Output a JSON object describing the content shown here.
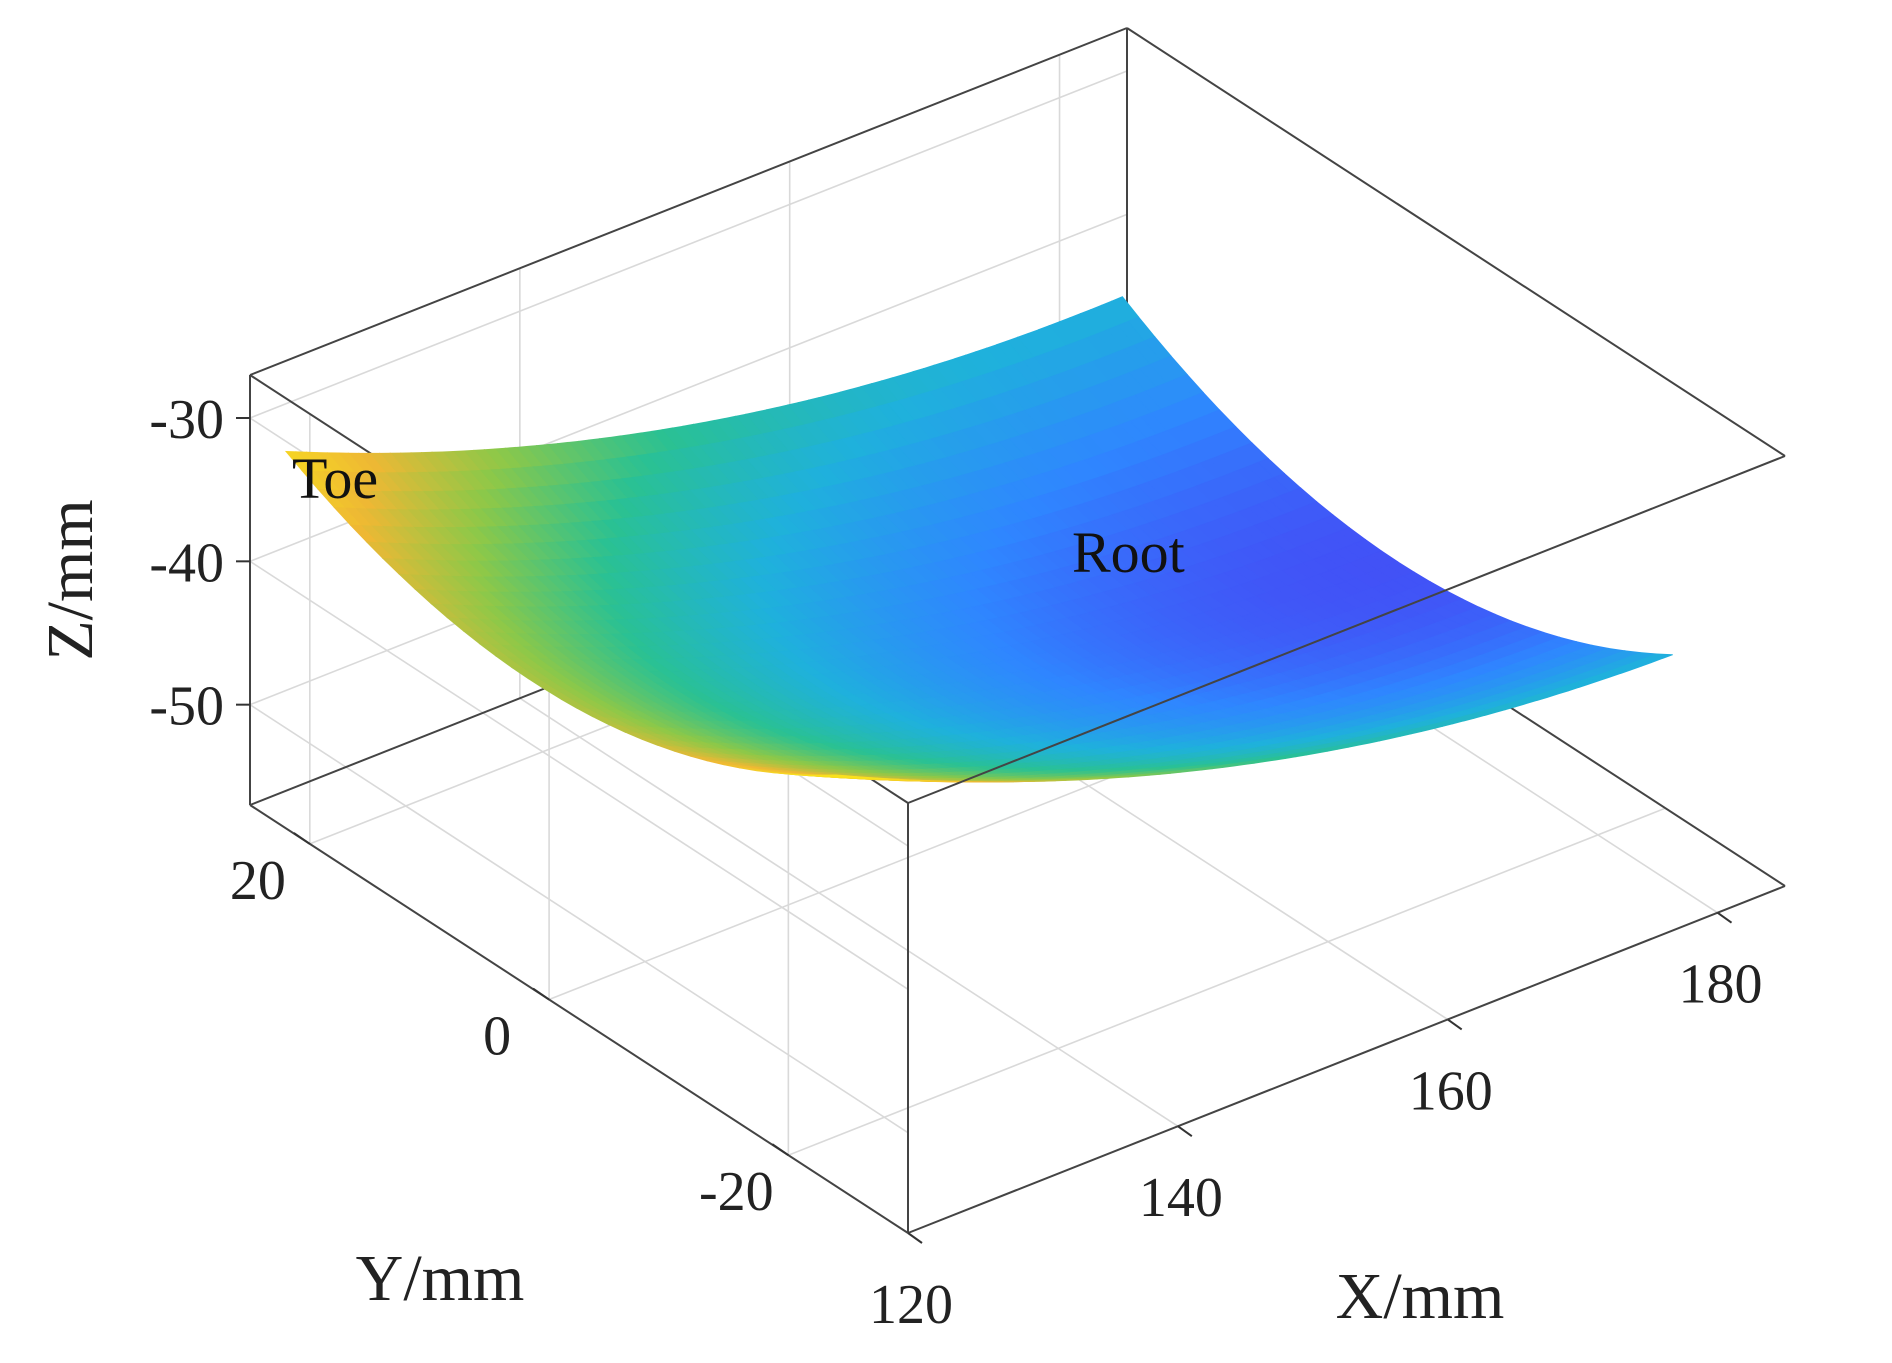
{
  "chart_data": {
    "type": "surface",
    "xlabel": "X/mm",
    "ylabel": "Y/mm",
    "zlabel": "Z/mm",
    "xlim": [
      120,
      185
    ],
    "ylim": [
      -30,
      25
    ],
    "zlim": [
      -57,
      -27
    ],
    "x_ticks": [
      "120",
      "140",
      "160",
      "180"
    ],
    "y_ticks": [
      "20",
      "0",
      "-20"
    ],
    "z_ticks": [
      "-30",
      "-40",
      "-50"
    ],
    "x_tick_values": [
      120,
      140,
      160,
      180
    ],
    "y_tick_values": [
      20,
      0,
      -20
    ],
    "z_tick_values": [
      -30,
      -40,
      -50
    ],
    "grid": true,
    "colormap": "parula",
    "colormap_stops": [
      "#3e26a8",
      "#4743f4",
      "#2f86ff",
      "#1fb1dc",
      "#2ac193",
      "#8ec848",
      "#eeb834",
      "#f9e11d"
    ],
    "annotations": [
      "Toe",
      "Root"
    ],
    "surface": {
      "x_range": [
        120,
        182
      ],
      "y_range": [
        -24,
        22
      ],
      "z_at_x120": -29.5,
      "z_at_x182": -43,
      "cross_bow_depth": 6,
      "z_color_range": [
        -53,
        -30
      ]
    }
  }
}
